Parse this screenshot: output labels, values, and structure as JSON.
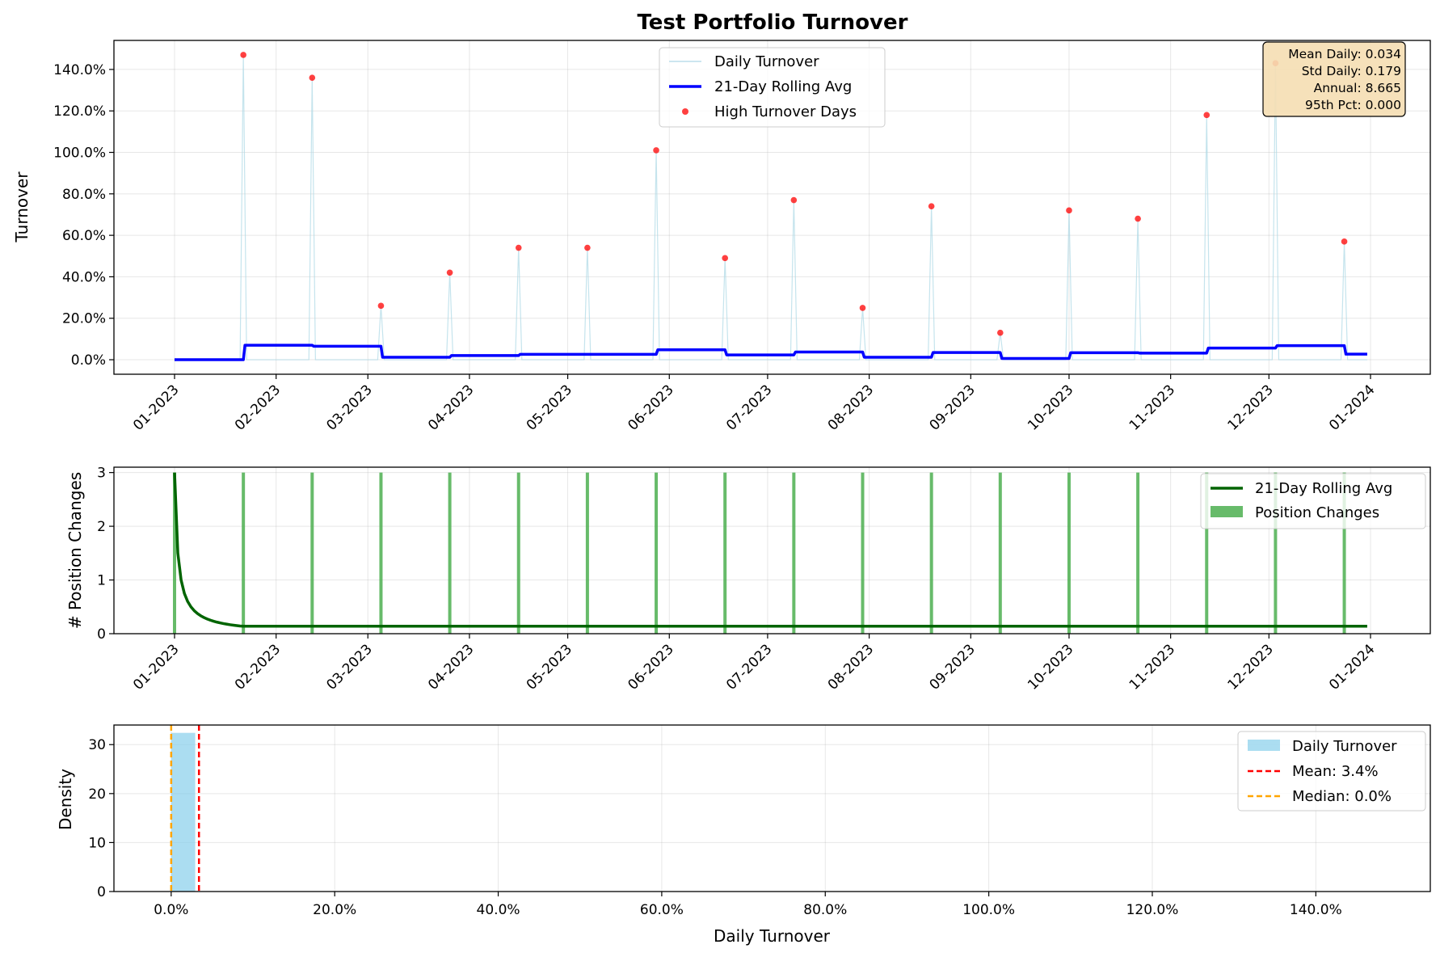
{
  "title": "Test Portfolio Turnover",
  "colors": {
    "daily": "#add8e6",
    "rolling": "#0000ff",
    "highlight": "#ff0000",
    "position_bars": "#4caf50",
    "position_rolling": "#006400",
    "hist": "#87ceeb",
    "mean_line": "#ff0000",
    "median_line": "#ffa500",
    "stats_box": "#f5deb3"
  },
  "chart_data": [
    {
      "type": "line",
      "ylabel": "Turnover",
      "x_range": [
        "2023-01-01",
        "2023-12-31"
      ],
      "ylim": [
        -0.07,
        1.54
      ],
      "yticks": [
        0,
        0.2,
        0.4,
        0.6,
        0.8,
        1.0,
        1.2,
        1.4
      ],
      "ytick_labels": [
        "0.0%",
        "20.0%",
        "40.0%",
        "60.0%",
        "80.0%",
        "100.0%",
        "120.0%",
        "140.0%"
      ],
      "xticks": [
        "2023-01-01",
        "2023-02-01",
        "2023-03-01",
        "2023-04-01",
        "2023-05-01",
        "2023-06-01",
        "2023-07-01",
        "2023-08-01",
        "2023-09-01",
        "2023-10-01",
        "2023-11-01",
        "2023-12-01",
        "2024-01-01"
      ],
      "xtick_labels": [
        "01-2023",
        "02-2023",
        "03-2023",
        "04-2023",
        "05-2023",
        "06-2023",
        "07-2023",
        "08-2023",
        "09-2023",
        "10-2023",
        "11-2023",
        "12-2023",
        "01-2024"
      ],
      "grid": true,
      "legend_position": "top-center",
      "series": [
        {
          "name": "Daily Turnover",
          "style": "thin line"
        },
        {
          "name": "21-Day Rolling Avg",
          "style": "thick line"
        },
        {
          "name": "High Turnover Days",
          "style": "markers"
        }
      ],
      "high_turnover_days": [
        {
          "date": "2023-01-22",
          "value": 1.47
        },
        {
          "date": "2023-02-12",
          "value": 1.36
        },
        {
          "date": "2023-03-05",
          "value": 0.26
        },
        {
          "date": "2023-03-26",
          "value": 0.42
        },
        {
          "date": "2023-04-16",
          "value": 0.54
        },
        {
          "date": "2023-05-07",
          "value": 0.54
        },
        {
          "date": "2023-05-28",
          "value": 1.01
        },
        {
          "date": "2023-06-18",
          "value": 0.49
        },
        {
          "date": "2023-07-09",
          "value": 0.77
        },
        {
          "date": "2023-07-30",
          "value": 0.25
        },
        {
          "date": "2023-08-20",
          "value": 0.74
        },
        {
          "date": "2023-09-10",
          "value": 0.13
        },
        {
          "date": "2023-10-01",
          "value": 0.72
        },
        {
          "date": "2023-10-22",
          "value": 0.68
        },
        {
          "date": "2023-11-12",
          "value": 1.18
        },
        {
          "date": "2023-12-03",
          "value": 1.43
        },
        {
          "date": "2023-12-24",
          "value": 0.57
        }
      ],
      "rolling_avg_steps": [
        {
          "date": "2023-01-01",
          "value": 0.0
        },
        {
          "date": "2023-01-22",
          "value": 0.07
        },
        {
          "date": "2023-02-12",
          "value": 0.065
        },
        {
          "date": "2023-03-05",
          "value": 0.012
        },
        {
          "date": "2023-03-26",
          "value": 0.02
        },
        {
          "date": "2023-04-16",
          "value": 0.026
        },
        {
          "date": "2023-05-07",
          "value": 0.026
        },
        {
          "date": "2023-05-28",
          "value": 0.048
        },
        {
          "date": "2023-06-18",
          "value": 0.023
        },
        {
          "date": "2023-07-09",
          "value": 0.037
        },
        {
          "date": "2023-07-30",
          "value": 0.012
        },
        {
          "date": "2023-08-20",
          "value": 0.035
        },
        {
          "date": "2023-09-10",
          "value": 0.006
        },
        {
          "date": "2023-10-01",
          "value": 0.034
        },
        {
          "date": "2023-10-22",
          "value": 0.032
        },
        {
          "date": "2023-11-12",
          "value": 0.056
        },
        {
          "date": "2023-12-03",
          "value": 0.068
        },
        {
          "date": "2023-12-24",
          "value": 0.027
        }
      ],
      "stats_box": {
        "mean_daily": "Mean Daily: 0.034",
        "std_daily": "Std Daily: 0.179",
        "annual": "Annual: 8.665",
        "pct95": "95th Pct: 0.000"
      }
    },
    {
      "type": "bar",
      "ylabel": "# Position Changes",
      "ylim": [
        0,
        3.1
      ],
      "yticks": [
        0,
        1,
        2,
        3
      ],
      "ytick_labels": [
        "0",
        "1",
        "2",
        "3"
      ],
      "xticks": [
        "2023-01-01",
        "2023-02-01",
        "2023-03-01",
        "2023-04-01",
        "2023-05-01",
        "2023-06-01",
        "2023-07-01",
        "2023-08-01",
        "2023-09-01",
        "2023-10-01",
        "2023-11-01",
        "2023-12-01",
        "2024-01-01"
      ],
      "xtick_labels": [
        "01-2023",
        "02-2023",
        "03-2023",
        "04-2023",
        "05-2023",
        "06-2023",
        "07-2023",
        "08-2023",
        "09-2023",
        "10-2023",
        "11-2023",
        "12-2023",
        "01-2024"
      ],
      "grid": true,
      "legend_position": "top-right",
      "series": [
        {
          "name": "21-Day Rolling Avg",
          "style": "line"
        },
        {
          "name": "Position Changes",
          "style": "bars"
        }
      ],
      "position_change_days": [
        "2023-01-01",
        "2023-01-22",
        "2023-02-12",
        "2023-03-05",
        "2023-03-26",
        "2023-04-16",
        "2023-05-07",
        "2023-05-28",
        "2023-06-18",
        "2023-07-09",
        "2023-07-30",
        "2023-08-20",
        "2023-09-10",
        "2023-10-01",
        "2023-10-22",
        "2023-11-12",
        "2023-12-03",
        "2023-12-24"
      ],
      "position_change_value": 3,
      "rolling_avg": {
        "start": 3,
        "floor": 0.14
      }
    },
    {
      "type": "bar",
      "xlabel": "Daily Turnover",
      "ylabel": "Density",
      "xlim": [
        -0.07,
        1.54
      ],
      "ylim": [
        0,
        34
      ],
      "xticks": [
        0,
        0.2,
        0.4,
        0.6,
        0.8,
        1.0,
        1.2,
        1.4
      ],
      "xtick_labels": [
        "0.0%",
        "20.0%",
        "40.0%",
        "60.0%",
        "80.0%",
        "100.0%",
        "120.0%",
        "140.0%"
      ],
      "yticks": [
        0,
        10,
        20,
        30
      ],
      "ytick_labels": [
        "0",
        "10",
        "20",
        "30"
      ],
      "grid": true,
      "legend_position": "top-right",
      "series": [
        {
          "name": "Daily Turnover",
          "style": "histogram"
        },
        {
          "name": "Mean: 3.4%",
          "style": "dashed vline"
        },
        {
          "name": "Median: 0.0%",
          "style": "dashed vline"
        }
      ],
      "histogram_bins": [
        {
          "from": 0.0,
          "to": 0.0294,
          "density": 32.4
        }
      ],
      "mean": 0.034,
      "median": 0.0
    }
  ]
}
